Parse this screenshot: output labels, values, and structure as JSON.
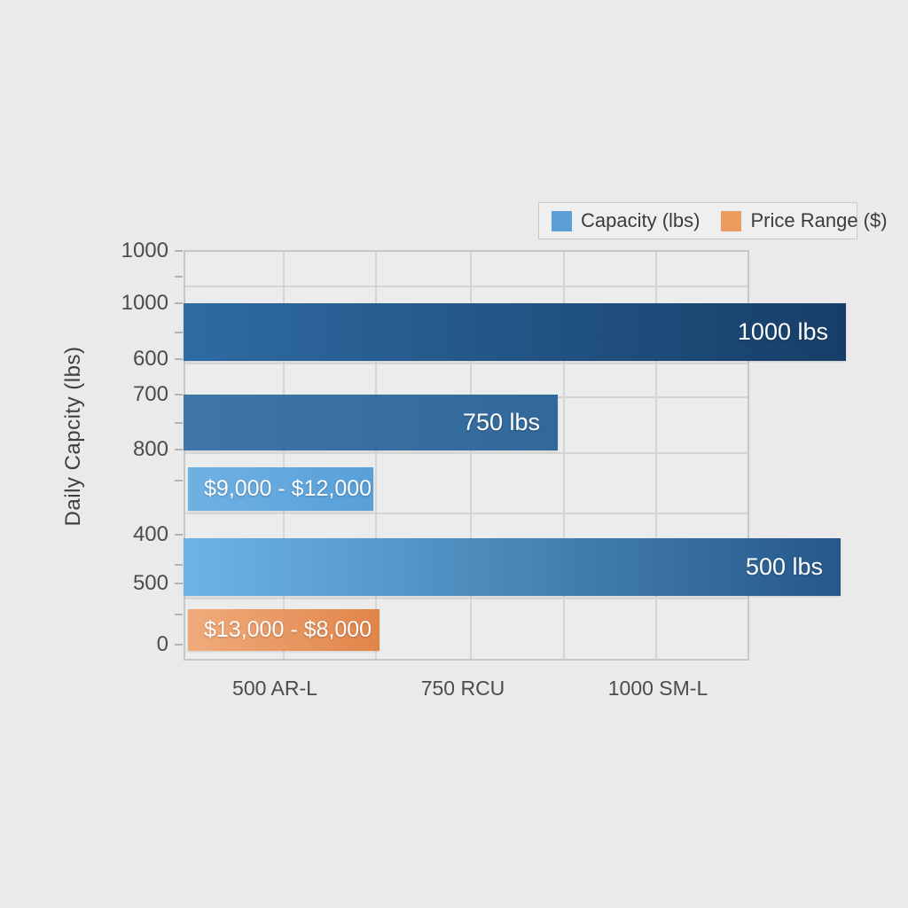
{
  "chart_data": {
    "type": "bar",
    "orientation": "horizontal",
    "title": "",
    "axis_title_y": "Daily Capcity (lbs)",
    "x_tick_labels": [
      "500 AR-L",
      "750 RCU",
      "1000 SM-L"
    ],
    "y_tick_labels": [
      "1000",
      "1000",
      "600",
      "700",
      "800",
      "400",
      "500",
      "0"
    ],
    "grid": true,
    "legend": {
      "position": "top-right",
      "entries": [
        {
          "label": "Capacity (lbs)",
          "color": "#5b9fd6"
        },
        {
          "label": "Price Range ($)",
          "color": "#ec9c5e"
        }
      ]
    },
    "bars": [
      {
        "series": "Capacity (lbs)",
        "label": "1000 lbs",
        "value_frac": 1.14,
        "color_start": "#2e6ba3",
        "color_end": "#173e68",
        "label_align": "right"
      },
      {
        "series": "Capacity (lbs)",
        "label": "750 lbs",
        "value_frac": 0.63,
        "color_start": "#3e76a9",
        "color_end": "#32689a",
        "label_align": "right"
      },
      {
        "series": "Price Range ($)",
        "label": "$9,000 - $12,000",
        "value_frac": 0.3,
        "color_start": "#6fb1e3",
        "color_end": "#58a0d9",
        "label_align": "left"
      },
      {
        "series": "Capacity (lbs)",
        "label": "500 lbs",
        "value_frac": 1.13,
        "color_start": "#6db4e6",
        "color_end": "#26588a",
        "label_align": "right"
      },
      {
        "series": "Price Range ($)",
        "label": "$13,000 - $8,000",
        "value_frac": 0.31,
        "color_start": "#f0ab7b",
        "color_end": "#e1854a",
        "label_align": "left"
      }
    ]
  }
}
